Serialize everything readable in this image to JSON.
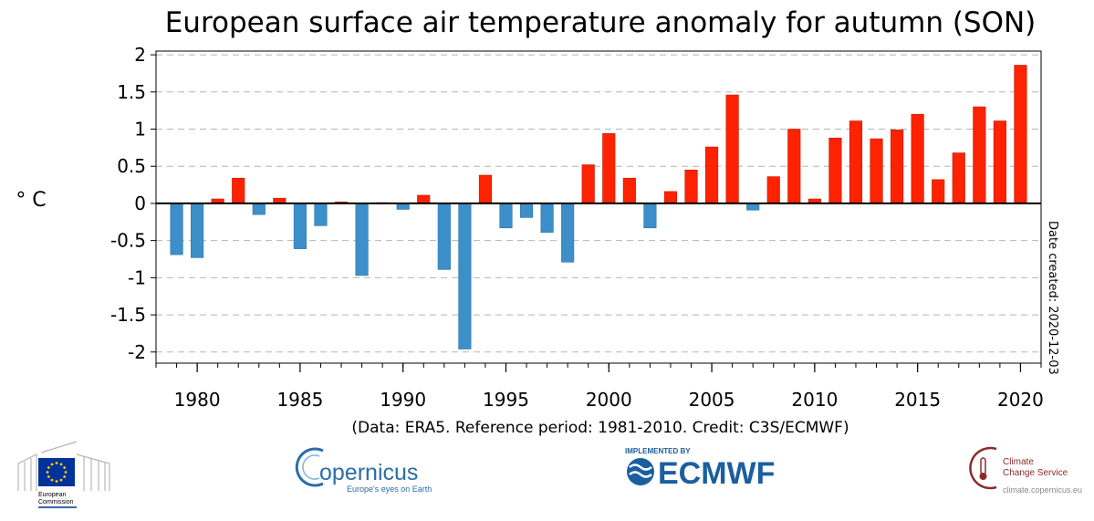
{
  "chart_data": {
    "type": "bar",
    "title": "European surface air temperature anomaly for autumn (SON)",
    "ylabel": "° C",
    "ylim": [
      -2.15,
      2.05
    ],
    "yticks": [
      2,
      1.5,
      1,
      0.5,
      0,
      -0.5,
      -1,
      -1.5,
      -2
    ],
    "yticklabels": [
      "2",
      "1.5",
      "1",
      "0.5",
      "0",
      "-0.5",
      "-1",
      "-1.5",
      "-2"
    ],
    "xlim": [
      1978,
      2021
    ],
    "xticks": [
      1980,
      1985,
      1990,
      1995,
      2000,
      2005,
      2010,
      2015,
      2020
    ],
    "xticklabels": [
      "1980",
      "1985",
      "1990",
      "1995",
      "2000",
      "2005",
      "2010",
      "2015",
      "2020"
    ],
    "grid": true,
    "positive_color": "#ff2200",
    "negative_color": "#3c8fc9",
    "years": [
      1979,
      1980,
      1981,
      1982,
      1983,
      1984,
      1985,
      1986,
      1987,
      1988,
      1989,
      1990,
      1991,
      1992,
      1993,
      1994,
      1995,
      1996,
      1997,
      1998,
      1999,
      2000,
      2001,
      2002,
      2003,
      2004,
      2005,
      2006,
      2007,
      2008,
      2009,
      2010,
      2011,
      2012,
      2013,
      2014,
      2015,
      2016,
      2017,
      2018,
      2019,
      2020
    ],
    "values": [
      -0.69,
      -0.73,
      0.06,
      0.34,
      -0.15,
      0.07,
      -0.61,
      -0.3,
      0.02,
      -0.97,
      0.01,
      -0.08,
      0.11,
      -0.89,
      -1.96,
      0.38,
      -0.33,
      -0.19,
      -0.39,
      -0.79,
      0.52,
      0.94,
      0.34,
      -0.33,
      0.16,
      0.45,
      0.76,
      1.46,
      -0.09,
      0.36,
      1.0,
      0.06,
      0.88,
      1.11,
      0.87,
      0.99,
      1.2,
      0.32,
      0.68,
      1.3,
      1.11,
      1.86
    ],
    "credit": "(Data: ERA5.  Reference period: 1981-2010.  Credit: C3S/ECMWF)",
    "side_note": "Date created: 2020-12-03"
  },
  "logos": {
    "eu_label_line1": "European",
    "eu_label_line2": "Commission",
    "copernicus_name": "opernicus",
    "copernicus_tagline": "Europe's eyes on Earth",
    "ecmwf_top": "IMPLEMENTED BY",
    "ecmwf_name": "ECMWF",
    "c3s_line1": "Climate",
    "c3s_line2": "Change Service",
    "c3s_url": "climate.copernicus.eu",
    "eu_flag_color": "#003399",
    "ecmwf_color": "#1b5fa0",
    "copernicus_color": "#2a6ea8",
    "c3s_color": "#8b2b2b"
  }
}
